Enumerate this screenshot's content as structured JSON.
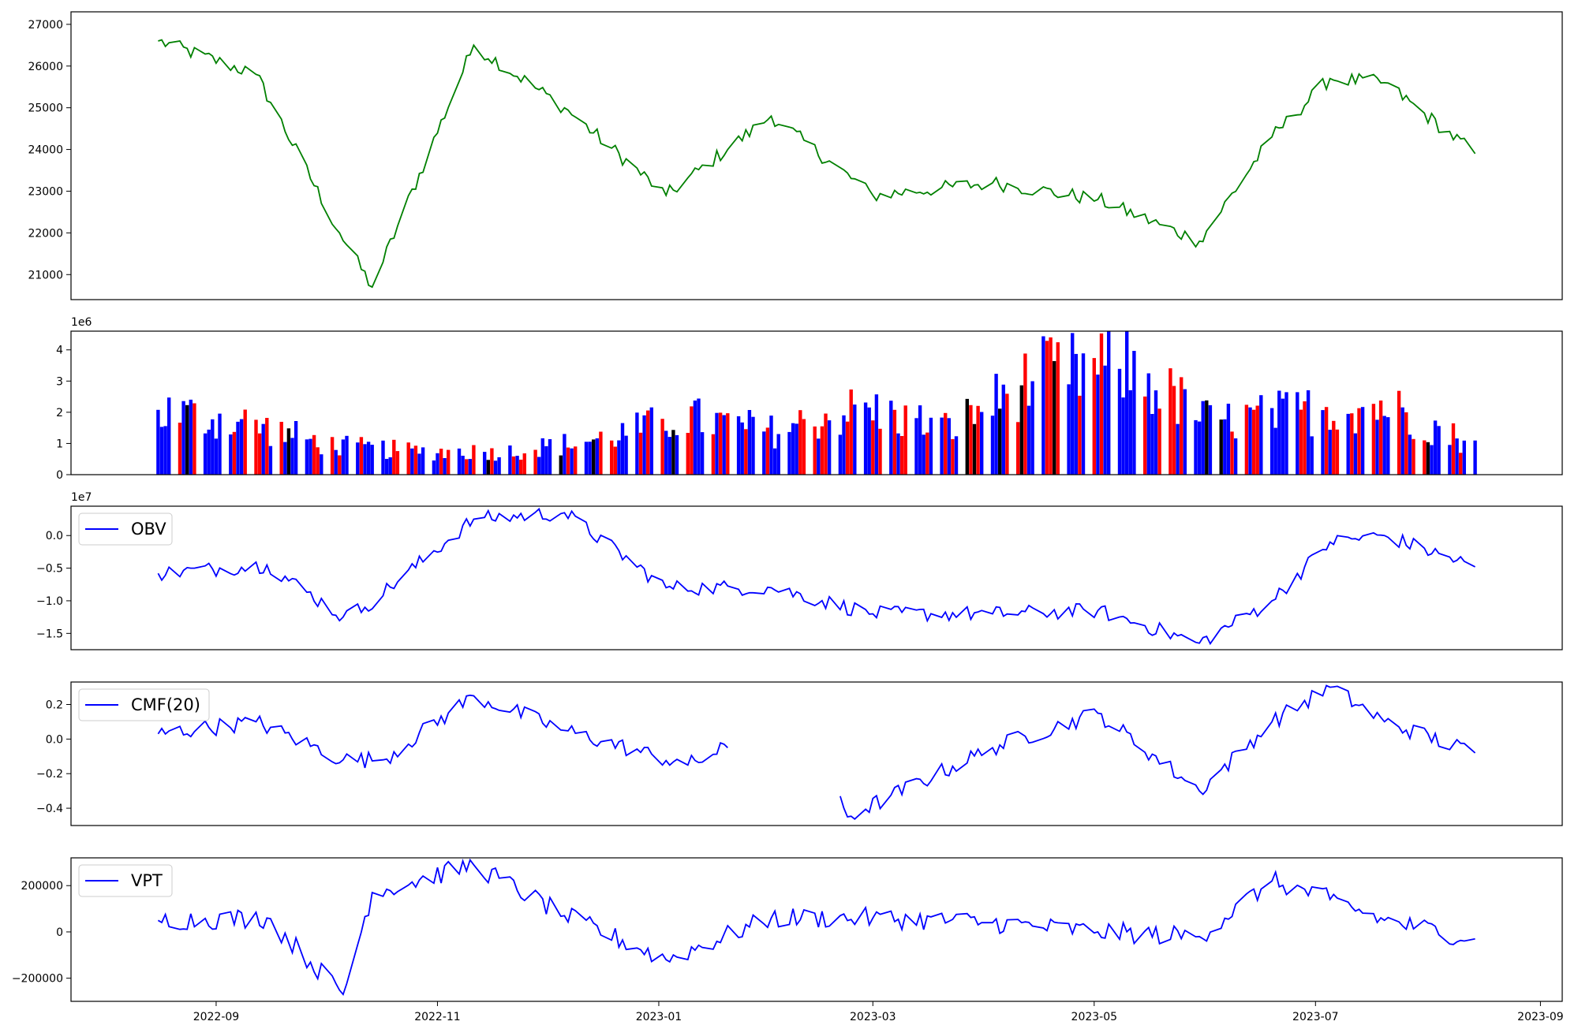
{
  "x_ticks": [
    "2022-09",
    "2022-11",
    "2023-01",
    "2023-03",
    "2023-05",
    "2023-07",
    "2023-09"
  ],
  "chart_data": [
    {
      "id": "price",
      "type": "line",
      "color": "#008000",
      "ylim": [
        20400,
        27300
      ],
      "yticks": [
        21000,
        22000,
        23000,
        24000,
        25000,
        26000,
        27000
      ],
      "x": [
        "2022-08-16",
        "2022-09-12",
        "2022-10-05",
        "2022-10-14",
        "2022-11-11",
        "2022-12-06",
        "2023-01-03",
        "2023-02-01",
        "2023-03-01",
        "2023-04-03",
        "2023-05-02",
        "2023-05-30",
        "2023-06-19",
        "2023-07-05",
        "2023-07-20",
        "2023-08-14"
      ],
      "values": [
        26600,
        25800,
        22000,
        20700,
        26500,
        25000,
        22900,
        24800,
        22900,
        23200,
        22800,
        21800,
        24300,
        25700,
        25600,
        23900
      ],
      "yaxis_unit": "",
      "series": []
    },
    {
      "id": "volume",
      "type": "bar",
      "offset_label": "1e6",
      "ylim": [
        0,
        4.6
      ],
      "yticks": [
        0,
        1,
        2,
        3,
        4
      ],
      "colors": {
        "up": "#ff0000",
        "down": "#0000ff",
        "flat": "#000000"
      },
      "pattern": [
        "up",
        "up",
        "down",
        "down",
        "down",
        "down",
        "down",
        "down",
        "up",
        "up",
        "flat",
        "up",
        "up",
        "down",
        "down",
        "down"
      ],
      "values": [
        2.2,
        1.8,
        1.0,
        0.8,
        0.8,
        1.2,
        2.0,
        1.5,
        2.3,
        1.6,
        3.4,
        3.8,
        1.8,
        2.2,
        2.4,
        1.0
      ],
      "series": []
    },
    {
      "id": "obv",
      "type": "line",
      "color": "#0000ff",
      "offset_label": "1e7",
      "ylim": [
        -1.75,
        0.45
      ],
      "yticks": [
        -1.5,
        -1.0,
        -0.5,
        0.0
      ],
      "ytick_labels": [
        "−1.5",
        "−1.0",
        "−0.5",
        "0.0"
      ],
      "x": [
        "2022-08-16",
        "2022-09-15",
        "2022-10-06",
        "2022-10-12",
        "2022-11-11",
        "2022-12-06",
        "2023-01-03",
        "2023-02-01",
        "2023-03-01",
        "2023-04-03",
        "2023-05-02",
        "2023-05-30",
        "2023-06-19",
        "2023-07-05",
        "2023-07-20",
        "2023-08-14"
      ],
      "values": [
        -0.58,
        -0.45,
        -1.25,
        -1.1,
        0.25,
        0.35,
        -0.8,
        -0.8,
        -1.2,
        -1.2,
        -1.15,
        -1.65,
        -1.0,
        -0.1,
        0.0,
        -0.48
      ],
      "legend": {
        "label": "OBV",
        "position": "upper-left"
      },
      "series": []
    },
    {
      "id": "cmf",
      "type": "line",
      "color": "#0000ff",
      "ylim": [
        -0.5,
        0.33
      ],
      "yticks": [
        -0.4,
        -0.2,
        0.0,
        0.2
      ],
      "ytick_labels": [
        "−0.4",
        "−0.2",
        "0.0",
        "0.2"
      ],
      "x": [
        "2022-08-16",
        "2022-09-12",
        "2022-10-06",
        "2022-10-17",
        "2022-11-11",
        "2022-12-06",
        "2023-01-09",
        "2023-01-20",
        "2023-02-20",
        "2023-02-22",
        "2023-04-03",
        "2023-05-02",
        "2023-05-30",
        "2023-06-19",
        "2023-07-05",
        "2023-07-20",
        "2023-08-14"
      ],
      "values": [
        0.03,
        0.1,
        -0.12,
        -0.12,
        0.25,
        0.05,
        -0.15,
        -0.05,
        -0.33,
        -0.45,
        -0.05,
        0.15,
        -0.3,
        0.1,
        0.3,
        0.1,
        -0.08
      ],
      "gap_after_index": 7,
      "legend": {
        "label": "CMF(20)",
        "position": "upper-left"
      },
      "series": []
    },
    {
      "id": "vpt",
      "type": "line",
      "color": "#0000ff",
      "ylim": [
        -300000,
        320000
      ],
      "yticks": [
        -200000,
        0,
        200000
      ],
      "ytick_labels": [
        "−200000",
        "0",
        "200000"
      ],
      "x": [
        "2022-08-16",
        "2022-09-15",
        "2022-10-06",
        "2022-10-14",
        "2022-11-11",
        "2022-12-06",
        "2023-01-03",
        "2023-02-01",
        "2023-03-01",
        "2023-04-03",
        "2023-05-02",
        "2023-05-30",
        "2023-06-19",
        "2023-07-05",
        "2023-07-20",
        "2023-08-14"
      ],
      "values": [
        50000,
        60000,
        -270000,
        170000,
        290000,
        70000,
        -120000,
        60000,
        60000,
        40000,
        0,
        -20000,
        220000,
        140000,
        50000,
        -30000
      ],
      "legend": {
        "label": "VPT",
        "position": "upper-left"
      },
      "series": []
    }
  ]
}
